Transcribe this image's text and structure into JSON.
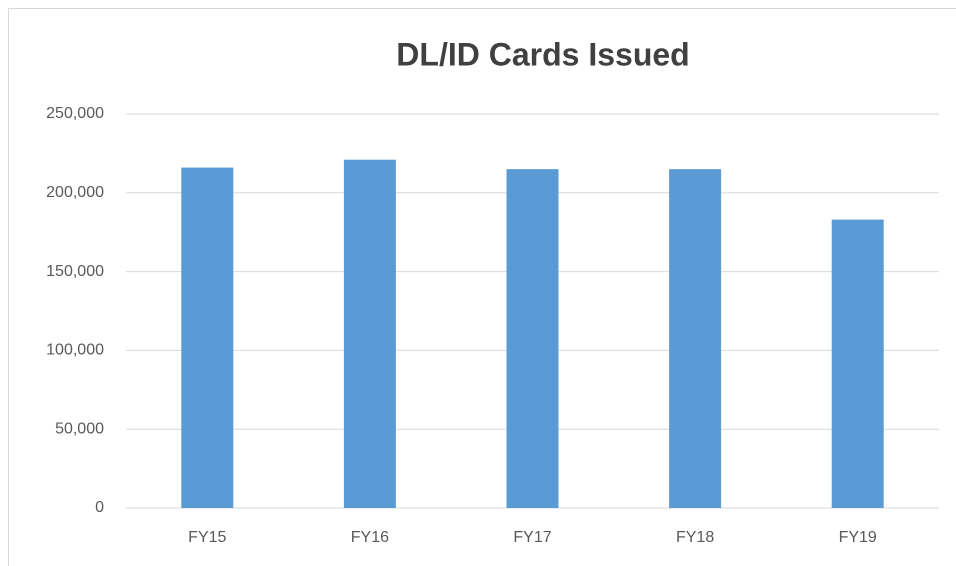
{
  "chart_data": {
    "type": "bar",
    "title": "DL/ID Cards Issued",
    "categories": [
      "FY15",
      "FY16",
      "FY17",
      "FY18",
      "FY19"
    ],
    "values": [
      216000,
      221000,
      215000,
      215000,
      183000
    ],
    "color": "#5b9bd5",
    "ylim": [
      0,
      250000
    ],
    "yticks": [
      0,
      {
        "value": 50000,
        "label": "50,000"
      },
      {
        "value": 100000,
        "label": "100,000"
      },
      {
        "value": 150000,
        "label": "150,000"
      },
      {
        "value": 200000,
        "label": "200,000"
      },
      {
        "value": 250000,
        "label": "250,000"
      }
    ],
    "grid": true
  }
}
